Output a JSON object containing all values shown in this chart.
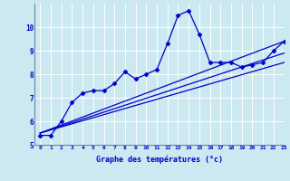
{
  "xlabel": "Graphe des températures (°c)",
  "background_color": "#cce8f0",
  "line_color": "#0000cc",
  "x_ticks": [
    0,
    1,
    2,
    3,
    4,
    5,
    6,
    7,
    8,
    9,
    10,
    11,
    12,
    13,
    14,
    15,
    16,
    17,
    18,
    19,
    20,
    21,
    22,
    23
  ],
  "ylim": [
    5,
    11
  ],
  "xlim": [
    -0.5,
    23
  ],
  "yticks": [
    5,
    6,
    7,
    8,
    9,
    10
  ],
  "series1_x": [
    0,
    1,
    2,
    3,
    4,
    5,
    6,
    7,
    8,
    9,
    10,
    11,
    12,
    13,
    14,
    15,
    16,
    17,
    18,
    19,
    20,
    21,
    22,
    23
  ],
  "series1_y": [
    5.4,
    5.4,
    6.0,
    6.8,
    7.2,
    7.3,
    7.3,
    7.6,
    8.1,
    7.8,
    8.0,
    8.2,
    9.3,
    10.5,
    10.7,
    9.7,
    8.5,
    8.5,
    8.5,
    8.3,
    8.4,
    8.5,
    9.0,
    9.4
  ],
  "series2_x": [
    0,
    23
  ],
  "series2_y": [
    5.5,
    9.4
  ],
  "series3_x": [
    0,
    23
  ],
  "series3_y": [
    5.5,
    8.9
  ],
  "series4_x": [
    0,
    23
  ],
  "series4_y": [
    5.5,
    8.5
  ]
}
